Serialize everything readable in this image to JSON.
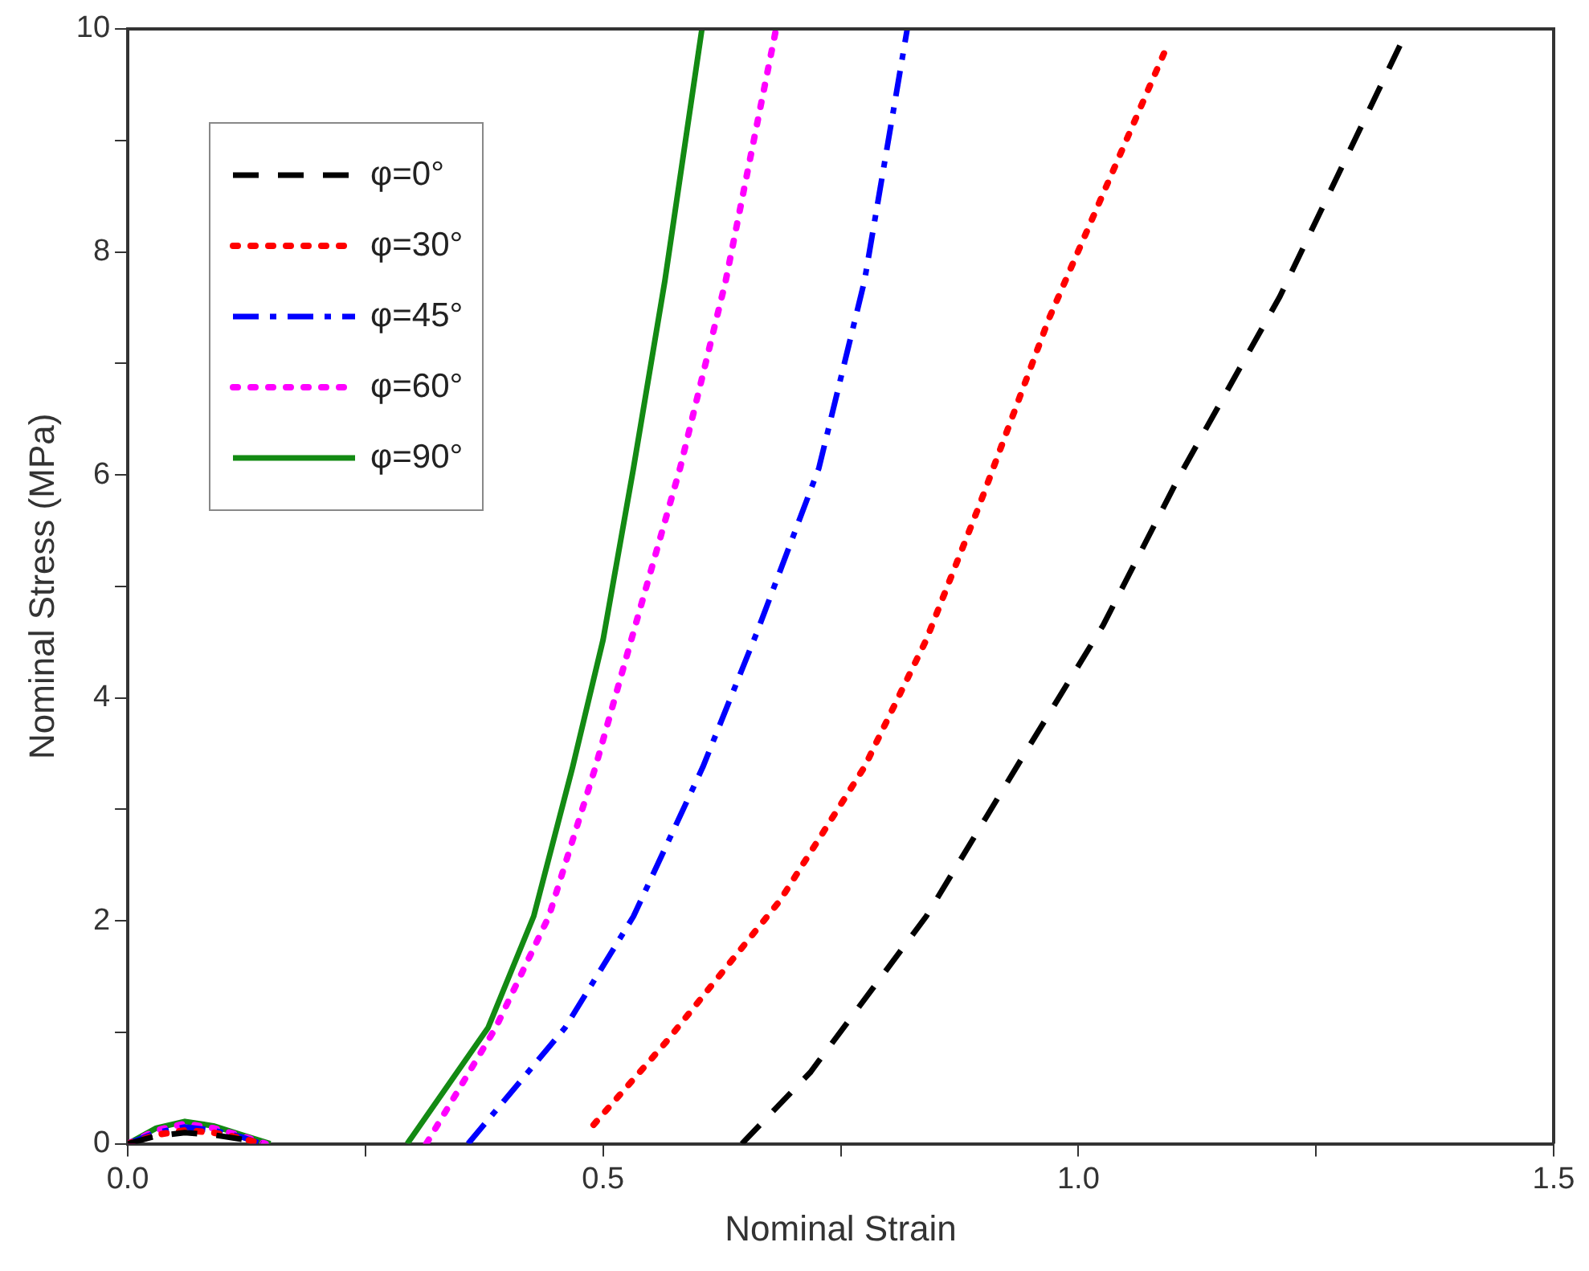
{
  "chart_data": {
    "type": "line",
    "xlabel": "Nominal Strain",
    "ylabel": "Nominal Stress (MPa)",
    "xlim": [
      0,
      1.5
    ],
    "ylim": [
      0,
      10
    ],
    "xticks": [
      {
        "value": 0,
        "label": "0.0"
      },
      {
        "value": 0.25,
        "label": null
      },
      {
        "value": 0.5,
        "label": "0.5"
      },
      {
        "value": 0.75,
        "label": null
      },
      {
        "value": 1,
        "label": "1.0"
      },
      {
        "value": 1.25,
        "label": null
      },
      {
        "value": 1.5,
        "label": "1.5"
      }
    ],
    "yticks": [
      0,
      {
        "value": 1,
        "label": null
      },
      2,
      {
        "value": 3,
        "label": null
      },
      4,
      {
        "value": 5,
        "label": null
      },
      6,
      {
        "value": 7,
        "label": null
      },
      8,
      {
        "value": 9,
        "label": null
      },
      10
    ],
    "grid": false,
    "legend": "top left",
    "marker": "none",
    "series": [
      {
        "name": "φ=0°",
        "color": "#000000",
        "line_style": "dashed",
        "x": [
          0,
          0.03,
          0.06,
          0.09,
          0.12,
          0.14,
          0.145,
          0.646,
          0.718,
          0.84,
          0.945,
          1.026,
          1.107,
          1.212,
          1.341
        ],
        "values": [
          0,
          0.07,
          0.1,
          0.08,
          0.04,
          0,
          null,
          0,
          0.64,
          2.04,
          3.52,
          4.65,
          6.0,
          7.6,
          9.9
        ]
      },
      {
        "name": "φ=30°",
        "color": "#ff0000",
        "line_style": "dotted",
        "x": [
          0,
          0.03,
          0.06,
          0.09,
          0.12,
          0.14,
          0.145,
          0.49,
          0.565,
          0.686,
          0.775,
          0.84,
          0.896,
          0.969,
          1.09
        ],
        "values": [
          0,
          0.08,
          0.12,
          0.1,
          0.05,
          0,
          null,
          0.17,
          0.9,
          2.18,
          3.38,
          4.52,
          5.73,
          7.4,
          9.78
        ]
      },
      {
        "name": "φ=45°",
        "color": "#0000ff",
        "line_style": "dashdot",
        "x": [
          0,
          0.03,
          0.06,
          0.09,
          0.12,
          0.14,
          0.145,
          0.358,
          0.46,
          0.532,
          0.605,
          0.662,
          0.727,
          0.775,
          0.82
        ],
        "values": [
          0,
          0.1,
          0.15,
          0.12,
          0.06,
          0,
          null,
          0,
          1.04,
          2.04,
          3.38,
          4.59,
          6.06,
          7.74,
          10
        ]
      },
      {
        "name": "φ=60°",
        "color": "#ff00ff",
        "line_style": "dotted",
        "x": [
          0,
          0.03,
          0.06,
          0.09,
          0.12,
          0.145,
          0.15,
          0.314,
          0.387,
          0.443,
          0.492,
          0.532,
          0.581,
          0.629,
          0.682
        ],
        "values": [
          0,
          0.12,
          0.18,
          0.14,
          0.07,
          0,
          null,
          0,
          1.04,
          2.04,
          3.38,
          4.59,
          6.06,
          7.74,
          10
        ]
      },
      {
        "name": "φ=90°",
        "color": "#138a13",
        "line_style": "solid",
        "x": [
          0,
          0.03,
          0.06,
          0.09,
          0.12,
          0.15,
          0.155,
          0.294,
          0.379,
          0.427,
          0.468,
          0.5,
          0.532,
          0.565,
          0.604
        ],
        "values": [
          0,
          0.14,
          0.2,
          0.16,
          0.08,
          0,
          null,
          0,
          1.04,
          2.04,
          3.38,
          4.52,
          6.06,
          7.74,
          10
        ]
      }
    ]
  }
}
